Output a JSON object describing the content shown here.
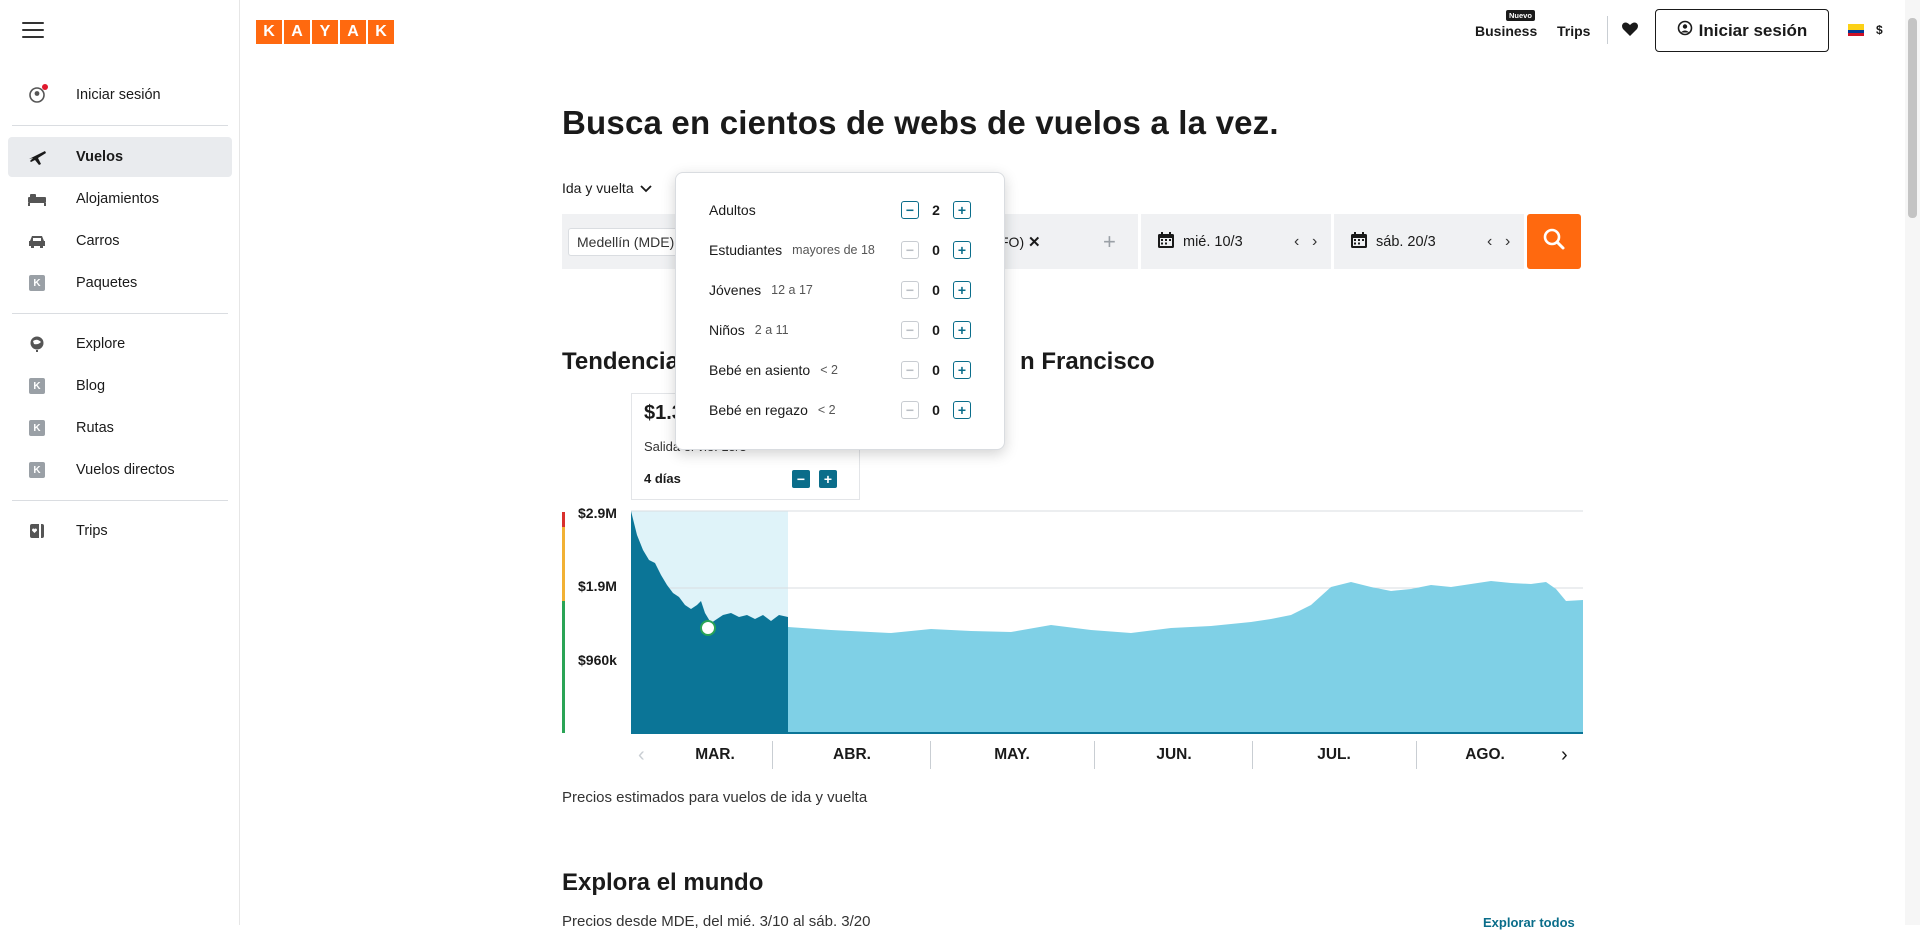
{
  "sidebar": {
    "items": [
      {
        "label": "Iniciar sesión",
        "icon": "user-circle-icon"
      },
      {
        "label": "Vuelos",
        "icon": "plane-icon",
        "active": true
      },
      {
        "label": "Alojamientos",
        "icon": "bed-icon"
      },
      {
        "label": "Carros",
        "icon": "car-icon"
      },
      {
        "label": "Paquetes",
        "icon": "kayak-k-icon"
      },
      {
        "label": "Explore",
        "icon": "globe-icon"
      },
      {
        "label": "Blog",
        "icon": "kayak-k-icon"
      },
      {
        "label": "Rutas",
        "icon": "kayak-k-icon"
      },
      {
        "label": "Vuelos directos",
        "icon": "kayak-k-icon"
      },
      {
        "label": "Trips",
        "icon": "trips-icon"
      }
    ]
  },
  "header": {
    "logo_letters": [
      "K",
      "A",
      "Y",
      "A",
      "K"
    ],
    "business_label": "Business",
    "nuevo_badge": "Nuevo",
    "trips_label": "Trips",
    "login_label": "Iniciar sesión",
    "currency": "$",
    "brand_color": "#ff690f"
  },
  "main": {
    "title": "Busca en cientos de webs de vuelos a la vez.",
    "trip_type": "Ida y vuelta",
    "origin": "Medellín (MDE)",
    "destination_visible": "FO)",
    "depart_date": "mié. 10/3",
    "return_date": "sáb. 20/3"
  },
  "passengers": {
    "rows": [
      {
        "label": "Adultos",
        "sub": "",
        "value": "2"
      },
      {
        "label": "Estudiantes",
        "sub": "mayores de 18",
        "value": "0"
      },
      {
        "label": "Jóvenes",
        "sub": "12 a 17",
        "value": "0"
      },
      {
        "label": "Niños",
        "sub": "2 a 11",
        "value": "0"
      },
      {
        "label": "Bebé en asiento",
        "sub": "< 2",
        "value": "0"
      },
      {
        "label": "Bebé en regazo",
        "sub": "< 2",
        "value": "0"
      }
    ]
  },
  "trends": {
    "title_left": "Tendencia",
    "title_right": "n Francisco",
    "tooltip_price": "$1.3",
    "tooltip_sub": "Salida el vie. 15/3",
    "tooltip_days": "4 días",
    "note": "Precios estimados para vuelos de ida y vuelta"
  },
  "explore": {
    "title": "Explora el mundo",
    "subtitle": "Precios desde MDE, del mié. 3/10 al sáb. 3/20",
    "link": "Explorar todos"
  },
  "chart_data": {
    "type": "area",
    "y_ticks": [
      "$2.9M",
      "$1.9M",
      "$960k"
    ],
    "months": [
      "MAR.",
      "ABR.",
      "MAY.",
      "JUN.",
      "JUL.",
      "AGO."
    ],
    "colors": {
      "selected": "#0b7597",
      "rest": "#7fd0e6",
      "highlight": "#dff3f9"
    }
  }
}
